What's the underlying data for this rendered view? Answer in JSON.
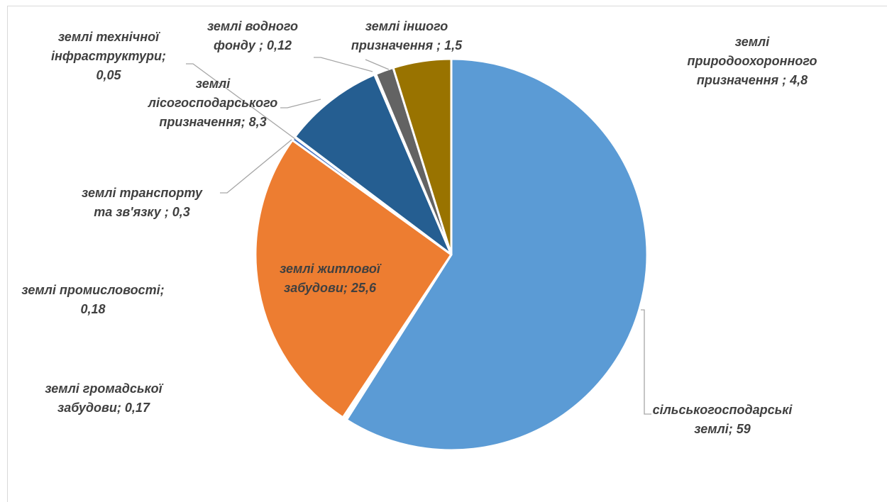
{
  "chart_data": {
    "type": "pie",
    "title": "",
    "slices": [
      {
        "label_lines": [
          "сільськогосподарські",
          "землі; 59"
        ],
        "name": "сільськогосподарські землі",
        "value": 59,
        "color": "#5B9BD5"
      },
      {
        "label_lines": [
          "землі громадської",
          "забудови; 0,17"
        ],
        "name": "землі громадської забудови",
        "value": 0.17,
        "color": "#A5A5A5"
      },
      {
        "label_lines": [
          "землі промисловості;",
          "0,18"
        ],
        "name": "землі промисловості",
        "value": 0.18,
        "color": "#FFC000"
      },
      {
        "label_lines": [
          "землі житлової",
          "забудови; 25,6"
        ],
        "name": "землі житлової забудови",
        "value": 25.6,
        "color": "#ED7D31"
      },
      {
        "label_lines": [
          "землі транспорту",
          "та зв'язку ; 0,3"
        ],
        "name": "землі транспорту та зв'язку",
        "value": 0.3,
        "color": "#4472C4"
      },
      {
        "label_lines": [
          "землі технічної",
          "інфраструктури;",
          "0,05"
        ],
        "name": "землі технічної інфраструктури",
        "value": 0.05,
        "color": "#70AD47"
      },
      {
        "label_lines": [
          "землі",
          "лісогосподарського",
          "призначення; 8,3"
        ],
        "name": "землі лісогосподарського призначення",
        "value": 8.3,
        "color": "#255E91"
      },
      {
        "label_lines": [
          "землі водного",
          "фонду ; 0,12"
        ],
        "name": "землі водного фонду",
        "value": 0.12,
        "color": "#9E480E"
      },
      {
        "label_lines": [
          "землі іншого",
          "призначення ; 1,5"
        ],
        "name": "землі іншого призначення",
        "value": 1.5,
        "color": "#636363"
      },
      {
        "label_lines": [
          "землі",
          "природоохоронного",
          "призначення ; 4,8"
        ],
        "name": "землі природоохоронного призначення",
        "value": 4.8,
        "color": "#997300"
      }
    ],
    "legend": "none",
    "data_labels": "category name; value"
  }
}
